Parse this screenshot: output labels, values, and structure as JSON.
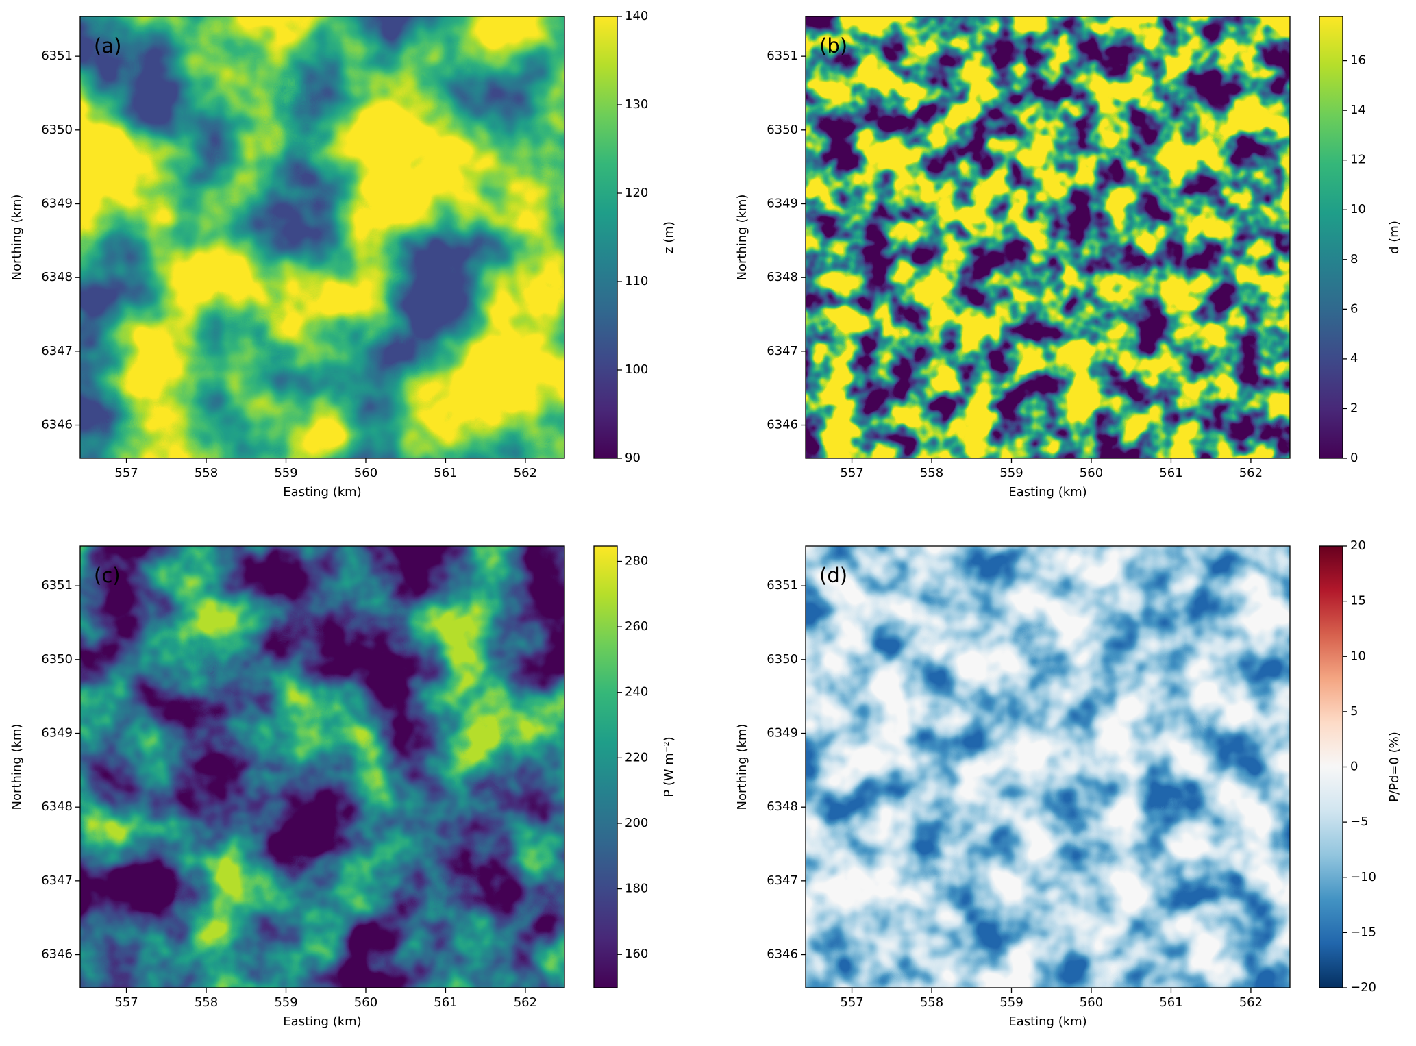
{
  "chart_data": [
    {
      "type": "heatmap",
      "panel_label": "(a)",
      "xlabel": "Easting (km)",
      "ylabel": "Northing (km)",
      "xlim": [
        556.42,
        562.49
      ],
      "xticks": [
        557,
        558,
        559,
        560,
        561,
        562
      ],
      "ylim": [
        6345.55,
        6351.54
      ],
      "yticks": [
        6346,
        6347,
        6348,
        6349,
        6350,
        6351
      ],
      "colorbar": {
        "label": "z (m)",
        "colormap": "viridis",
        "lim": [
          90,
          140
        ],
        "ticks": [
          90,
          100,
          110,
          120,
          130,
          140
        ]
      }
    },
    {
      "type": "heatmap",
      "panel_label": "(b)",
      "xlabel": "Easting (km)",
      "ylabel": "Northing (km)",
      "xlim": [
        556.42,
        562.49
      ],
      "xticks": [
        557,
        558,
        559,
        560,
        561,
        562
      ],
      "ylim": [
        6345.55,
        6351.54
      ],
      "yticks": [
        6346,
        6347,
        6348,
        6349,
        6350,
        6351
      ],
      "colorbar": {
        "label": "d (m)",
        "colormap": "viridis",
        "lim": [
          0,
          17.78
        ],
        "ticks": [
          0,
          2,
          4,
          6,
          8,
          10,
          12,
          14,
          16
        ]
      }
    },
    {
      "type": "heatmap",
      "panel_label": "(c)",
      "xlabel": "Easting (km)",
      "ylabel": "Northing (km)",
      "xlim": [
        556.42,
        562.49
      ],
      "xticks": [
        557,
        558,
        559,
        560,
        561,
        562
      ],
      "ylim": [
        6345.55,
        6351.54
      ],
      "yticks": [
        6346,
        6347,
        6348,
        6349,
        6350,
        6351
      ],
      "colorbar": {
        "label": "P (W m⁻²)",
        "colormap": "viridis",
        "lim": [
          149.8,
          284.7
        ],
        "ticks": [
          160,
          180,
          200,
          220,
          240,
          260,
          280
        ]
      }
    },
    {
      "type": "heatmap",
      "panel_label": "(d)",
      "xlabel": "Easting (km)",
      "ylabel": "Northing (km)",
      "xlim": [
        556.42,
        562.49
      ],
      "xticks": [
        557,
        558,
        559,
        560,
        561,
        562
      ],
      "ylim": [
        6345.55,
        6351.54
      ],
      "yticks": [
        6346,
        6347,
        6348,
        6349,
        6350,
        6351
      ],
      "colorbar": {
        "label": "P/Pd=0 (%)",
        "colormap": "RdBu_r",
        "lim": [
          -20,
          20
        ],
        "ticks": [
          {
            "value": -20,
            "label": "−20"
          },
          {
            "value": -15,
            "label": "−15"
          },
          {
            "value": -10,
            "label": "−10"
          },
          {
            "value": -5,
            "label": "−5"
          },
          0,
          5,
          10,
          15,
          20
        ]
      }
    }
  ]
}
